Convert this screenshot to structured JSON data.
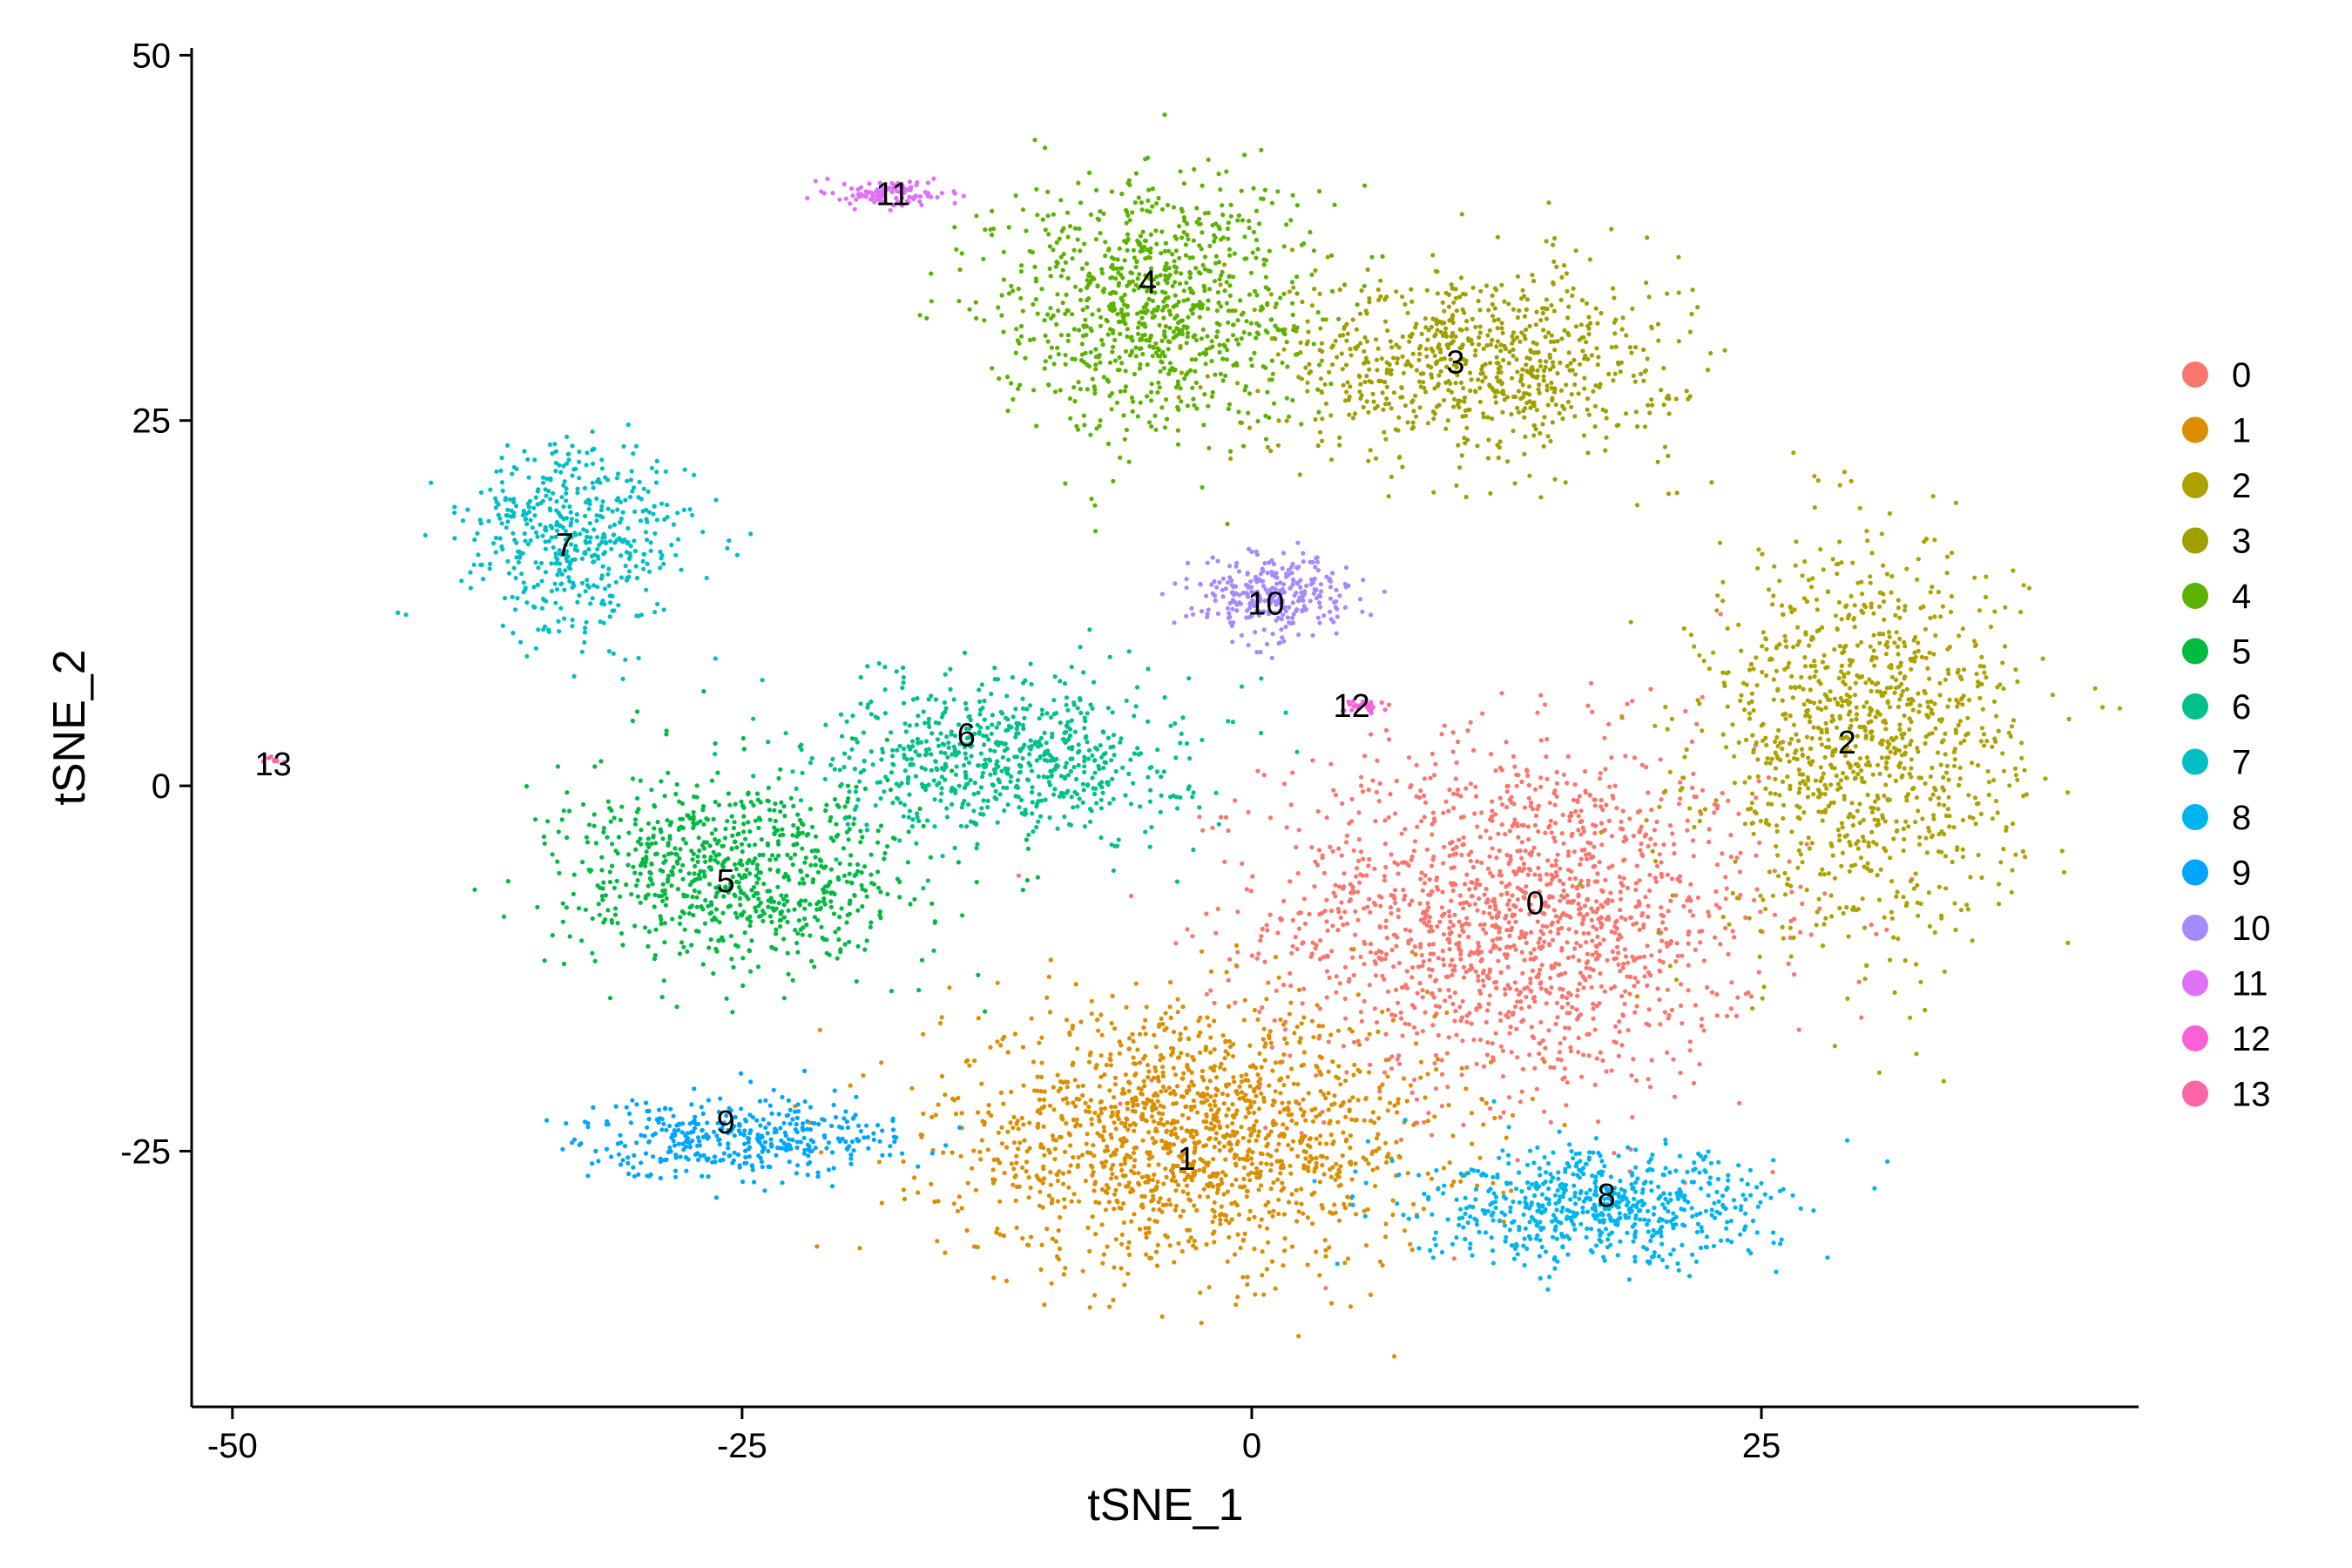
{
  "chart_data": {
    "type": "scatter",
    "title": "",
    "xlabel": "tSNE_1",
    "ylabel": "tSNE_2",
    "xlim": [
      -52,
      43.5
    ],
    "ylim": [
      -42.5,
      50.5
    ],
    "x_ticks": [
      -50,
      -25,
      0,
      25
    ],
    "y_ticks": [
      -25,
      0,
      25,
      50
    ],
    "x_tick_labels": [
      "-50",
      "-25",
      "0",
      "25"
    ],
    "y_tick_labels": [
      "-25",
      "0",
      "25",
      "50"
    ],
    "grid": false,
    "legend_position": "right",
    "clusters": [
      {
        "name": "0",
        "color": "#F8766D",
        "label_pos": [
          13.9,
          -8
        ],
        "centroid": [
          13,
          -9
        ],
        "spread": [
          11,
          11
        ],
        "n": 1600
      },
      {
        "name": "1",
        "color": "#DB8E00",
        "label_pos": [
          -3.2,
          -25.5
        ],
        "centroid": [
          -3,
          -24
        ],
        "spread": [
          11,
          8
        ],
        "n": 1500
      },
      {
        "name": "2",
        "color": "#AEA200",
        "label_pos": [
          29.2,
          3
        ],
        "centroid": [
          30,
          3
        ],
        "spread": [
          7,
          12
        ],
        "n": 1100
      },
      {
        "name": "3",
        "color": "#9FA000",
        "label_pos": [
          10,
          29
        ],
        "centroid": [
          11,
          29
        ],
        "spread": [
          9,
          6
        ],
        "n": 800
      },
      {
        "name": "4",
        "color": "#5BB300",
        "label_pos": [
          -5.1,
          34.5
        ],
        "centroid": [
          -5,
          33
        ],
        "spread": [
          7,
          8
        ],
        "n": 900
      },
      {
        "name": "5",
        "color": "#00BA42",
        "label_pos": [
          -25.8,
          -6.5
        ],
        "centroid": [
          -25,
          -6
        ],
        "spread": [
          8,
          6
        ],
        "n": 800
      },
      {
        "name": "6",
        "color": "#00C08B",
        "label_pos": [
          -14,
          3.5
        ],
        "centroid": [
          -12,
          2
        ],
        "spread": [
          8,
          5
        ],
        "n": 700
      },
      {
        "name": "7",
        "color": "#00BFC4",
        "label_pos": [
          -33.7,
          16.5
        ],
        "centroid": [
          -33,
          17
        ],
        "spread": [
          5,
          6
        ],
        "n": 500
      },
      {
        "name": "8",
        "color": "#00B4EF",
        "label_pos": [
          17.4,
          -28
        ],
        "centroid": [
          17,
          -29
        ],
        "spread": [
          8,
          3.5
        ],
        "n": 650
      },
      {
        "name": "9",
        "color": "#00A5FF",
        "label_pos": [
          -25.8,
          -23
        ],
        "centroid": [
          -25,
          -24
        ],
        "spread": [
          7,
          2.5
        ],
        "n": 400
      },
      {
        "name": "10",
        "color": "#A58AFF",
        "label_pos": [
          0.7,
          12.5
        ],
        "centroid": [
          1,
          13
        ],
        "spread": [
          3.5,
          2.5
        ],
        "n": 300
      },
      {
        "name": "11",
        "color": "#DF70F8",
        "label_pos": [
          -17.6,
          40.5
        ],
        "centroid": [
          -17.5,
          40.5
        ],
        "spread": [
          2.5,
          0.8
        ],
        "n": 110
      },
      {
        "name": "12",
        "color": "#FB61D7",
        "label_pos": [
          4.9,
          5.5
        ],
        "centroid": [
          5.5,
          5.5
        ],
        "spread": [
          1,
          0.5
        ],
        "n": 30
      },
      {
        "name": "13",
        "color": "#FF66A8",
        "label_pos": [
          -48,
          1.5
        ],
        "centroid": [
          -48,
          1.8
        ],
        "spread": [
          0.4,
          0.3
        ],
        "n": 8
      }
    ]
  },
  "legend": {
    "items": [
      "0",
      "1",
      "2",
      "3",
      "4",
      "5",
      "6",
      "7",
      "8",
      "9",
      "10",
      "11",
      "12",
      "13"
    ]
  }
}
